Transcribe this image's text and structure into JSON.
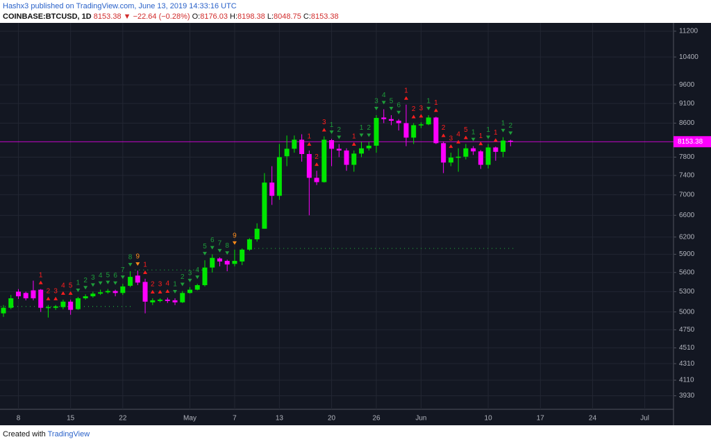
{
  "header": {
    "publisher": "Hashx3 published on TradingView.com, June 13, 2019 14:33:16 UTC",
    "symbol": "COINBASE:BTCUSD, 1D",
    "last": "8153.38",
    "change": "▼ −22.64 (−0.28%)",
    "o_label": "O:",
    "o": "8176.03",
    "h_label": "H:",
    "h": "8198.38",
    "l_label": "L:",
    "l": "8048.75",
    "c_label": "C:",
    "c": "8153.38"
  },
  "footer": {
    "text": "Created with",
    "brand": "TradingView"
  },
  "chart_data": {
    "type": "candlestick",
    "log_scale": true,
    "grid": true,
    "up_color": "#00e600",
    "down_color": "#ff00ff",
    "price_line_color": "#ff00ff",
    "categories": [
      null,
      null,
      "8",
      null,
      null,
      null,
      null,
      null,
      null,
      "15",
      null,
      null,
      null,
      null,
      null,
      null,
      "22",
      null,
      null,
      null,
      null,
      null,
      null,
      null,
      null,
      "May",
      null,
      null,
      null,
      null,
      null,
      "7",
      null,
      null,
      null,
      null,
      null,
      "13",
      null,
      null,
      null,
      null,
      null,
      null,
      "20",
      null,
      null,
      null,
      null,
      null,
      "26",
      null,
      null,
      null,
      null,
      null,
      "Jun",
      null,
      null,
      null,
      null,
      null,
      null,
      null,
      null,
      "10",
      null,
      null,
      null,
      null,
      null,
      null,
      "17",
      null,
      null,
      null,
      null,
      null,
      null,
      "24",
      null,
      null,
      null,
      null,
      null,
      null,
      "Jul",
      null,
      null
    ],
    "open": [
      4980,
      5060,
      5300,
      5280,
      5320,
      5330,
      5060,
      5060,
      5070,
      5150,
      5040,
      5200,
      5230,
      5270,
      5290,
      5310,
      5280,
      5390,
      5550,
      5450,
      5140,
      5160,
      5180,
      5170,
      5140,
      5280,
      5330,
      5400,
      5680,
      5830,
      5790,
      5740,
      5780,
      5980,
      6160,
      6350,
      7250,
      6980,
      7820,
      7990,
      8200,
      7870,
      7350,
      7260,
      8190,
      7990,
      7950,
      7630,
      7880,
      8000,
      8060,
      8740,
      8700,
      8660,
      8600,
      8250,
      8550,
      8570,
      8740,
      8120,
      7680,
      7790,
      7810,
      8000,
      7930,
      7630,
      8020,
      7920,
      8176.03,
      null,
      null,
      null,
      null,
      null,
      null,
      null,
      null,
      null,
      null,
      null,
      null,
      null,
      null,
      null,
      null,
      null,
      null,
      null,
      null
    ],
    "high": [
      5100,
      5250,
      5340,
      5300,
      5470,
      5340,
      5100,
      5100,
      5180,
      5180,
      5220,
      5260,
      5300,
      5330,
      5340,
      5330,
      5420,
      5620,
      5630,
      5500,
      5200,
      5200,
      5210,
      5200,
      5310,
      5370,
      5420,
      5800,
      5900,
      5850,
      5810,
      5980,
      6000,
      6180,
      6450,
      7450,
      7600,
      8100,
      8300,
      8300,
      8330,
      7950,
      7500,
      8280,
      8220,
      8100,
      8000,
      7950,
      8150,
      8150,
      8800,
      8950,
      8800,
      8700,
      9070,
      8600,
      8620,
      8800,
      8760,
      8150,
      7900,
      8000,
      8100,
      8050,
      7960,
      8100,
      8040,
      8260,
      8198.38,
      null,
      null,
      null,
      null,
      null,
      null,
      null,
      null,
      null,
      null,
      null,
      null,
      null,
      null,
      null,
      null,
      null,
      null,
      null,
      null
    ],
    "low": [
      4930,
      5040,
      5190,
      5170,
      5170,
      5000,
      4920,
      5030,
      5040,
      4960,
      5030,
      5180,
      5210,
      5250,
      5270,
      5230,
      5250,
      5370,
      5400,
      4980,
      5100,
      5140,
      5130,
      5100,
      5130,
      5270,
      5320,
      5380,
      5600,
      5700,
      5620,
      5700,
      5720,
      5960,
      6120,
      6350,
      6800,
      6900,
      7600,
      7900,
      7700,
      6600,
      7200,
      7250,
      7600,
      7800,
      7500,
      7480,
      7800,
      7950,
      7900,
      8600,
      8550,
      8420,
      8050,
      8100,
      8480,
      8550,
      8100,
      7450,
      7600,
      7480,
      7750,
      7850,
      7540,
      7550,
      7720,
      7800,
      8048.75,
      null,
      null,
      null,
      null,
      null,
      null,
      null,
      null,
      null,
      null,
      null,
      null,
      null,
      null,
      null,
      null,
      null,
      null,
      null,
      null
    ],
    "close": [
      5060,
      5200,
      5230,
      5200,
      5200,
      5060,
      5070,
      5080,
      5150,
      5030,
      5200,
      5230,
      5270,
      5290,
      5310,
      5280,
      5380,
      5530,
      5440,
      5150,
      5170,
      5180,
      5160,
      5140,
      5280,
      5330,
      5400,
      5680,
      5840,
      5780,
      5730,
      5790,
      5980,
      6160,
      6350,
      7250,
      6980,
      7800,
      7990,
      8200,
      7870,
      7350,
      7260,
      8200,
      7990,
      7950,
      7630,
      7880,
      8000,
      8060,
      8730,
      8700,
      8660,
      8600,
      8250,
      8550,
      8570,
      8740,
      8120,
      7680,
      7790,
      7810,
      8000,
      7930,
      7630,
      8020,
      7920,
      8180,
      8153.38,
      null,
      null,
      null,
      null,
      null,
      null,
      null,
      null,
      null,
      null,
      null,
      null,
      null,
      null,
      null,
      null,
      null,
      null,
      null,
      null
    ],
    "counts": [
      {
        "color": "#1e9e3a",
        "arrow": "down",
        "values": [
          null,
          null,
          null,
          null,
          null,
          null,
          null,
          null,
          null,
          null,
          1,
          2,
          3,
          4,
          5,
          6,
          7,
          8,
          null,
          null,
          null,
          null,
          null,
          1,
          2,
          3,
          4,
          5,
          6,
          7,
          8,
          null,
          null,
          null,
          null,
          null,
          null,
          null,
          null,
          null,
          null,
          null,
          null,
          null,
          1,
          2,
          null,
          null,
          1,
          2,
          3,
          4,
          5,
          6,
          null,
          null,
          null,
          1,
          null,
          null,
          null,
          null,
          null,
          1,
          null,
          1,
          null,
          1,
          2,
          null,
          null,
          null,
          null,
          null,
          null,
          null,
          null,
          null,
          null,
          null,
          null,
          null,
          null,
          null,
          null,
          null,
          null,
          null,
          null
        ]
      },
      {
        "color": "#ff1e1e",
        "arrow": "up",
        "values": [
          null,
          null,
          null,
          null,
          null,
          1,
          2,
          3,
          4,
          5,
          null,
          null,
          null,
          null,
          null,
          null,
          null,
          null,
          null,
          1,
          2,
          3,
          4,
          null,
          null,
          null,
          null,
          null,
          null,
          null,
          null,
          null,
          null,
          null,
          null,
          null,
          null,
          null,
          null,
          null,
          null,
          1,
          2,
          3,
          null,
          null,
          null,
          1,
          null,
          null,
          null,
          null,
          null,
          null,
          1,
          2,
          3,
          null,
          1,
          2,
          3,
          4,
          5,
          null,
          1,
          null,
          1,
          null,
          null,
          null,
          null,
          null,
          null,
          null,
          null,
          null,
          null,
          null,
          null,
          null,
          null,
          null,
          null,
          null,
          null,
          null,
          null,
          null,
          null
        ]
      },
      {
        "color": "#ff8c1a",
        "arrow": "down",
        "values": [
          null,
          null,
          null,
          null,
          null,
          null,
          null,
          null,
          null,
          null,
          null,
          null,
          null,
          null,
          null,
          null,
          null,
          null,
          9,
          null,
          null,
          null,
          null,
          null,
          null,
          null,
          null,
          null,
          null,
          null,
          null,
          9,
          null,
          null,
          null,
          null,
          null,
          null,
          null,
          null,
          null,
          null,
          null,
          null,
          null,
          null,
          null,
          null,
          null,
          null,
          null,
          null,
          null,
          null,
          null,
          null,
          null,
          null,
          null,
          null,
          null,
          null,
          null,
          null,
          null,
          null,
          null,
          null,
          null,
          null,
          null,
          null,
          null,
          null,
          null,
          null,
          null,
          null,
          null,
          null,
          null,
          null,
          null,
          null,
          null,
          null,
          null,
          null,
          null
        ]
      }
    ],
    "levels": [
      {
        "value": 5080,
        "from": 0,
        "to": 17,
        "color": "#1e9e3a"
      },
      {
        "value": 5640,
        "from": 18,
        "to": 27,
        "color": "#1e9e3a"
      },
      {
        "value": 6000,
        "from": 34,
        "to": 68,
        "color": "#1e9e3a"
      }
    ],
    "ylim": [
      3780,
      11470
    ],
    "yticks": [
      3930,
      4110,
      4310,
      4510,
      4750,
      5000,
      5300,
      5600,
      5900,
      6200,
      6600,
      7000,
      7400,
      7800,
      8600,
      9100,
      9600,
      10400,
      11200
    ]
  }
}
